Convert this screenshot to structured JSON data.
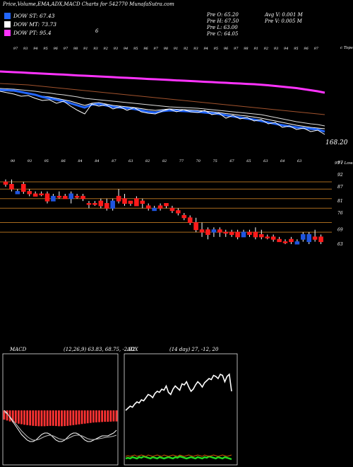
{
  "header": {
    "title": "Price,Volume,EMA,ADX,MACD Charts for 542770  MunafaSutra.com",
    "legend": [
      {
        "label": "DOW ST: 67.43",
        "color": "#2266ff"
      },
      {
        "label": "DOW MT: 73.73",
        "color": "#ffffff"
      },
      {
        "label": "DOW PT: 95.4",
        "color": "#ff33ff"
      }
    ],
    "ohlc": {
      "prev_open": "Pre   O: 65.20",
      "prev_high": "Pre   H: 67.50",
      "prev_low": "Pre   L: 63.00",
      "prev_close": "Pre   C: 64.05",
      "avg_volume": "Avg V: 0.001 M",
      "prev_volume": "Pre   V: 0.005 M"
    },
    "top_right_label": "c Tops",
    "mid_label": "6"
  },
  "colors": {
    "up": "#1f55e0",
    "down": "#ff1a1a",
    "ema_short": "#2266ff",
    "ema_mid": "#ffffff",
    "ema_long": "#ff33ff",
    "ema_brown": "#a0522d",
    "grid": "#a86a1e",
    "macd_hist": "#ff3333",
    "adx_green": "#22dd22",
    "adx_orange": "#cc5500"
  },
  "chart_data": [
    {
      "type": "line",
      "name": "ema-panel",
      "last_value_label": "168.20",
      "top_labels": [
        "97",
        "93",
        "94",
        "95",
        "96",
        "97",
        "98",
        "91",
        "93",
        "92",
        "93",
        "94",
        "95",
        "96",
        "97",
        "98",
        "91",
        "92",
        "93",
        "94",
        "95",
        "96",
        "97",
        "98",
        "91",
        "92",
        "93",
        "94",
        "95",
        "96",
        "97"
      ],
      "x": [
        0,
        10,
        20,
        30,
        40,
        50,
        60,
        70,
        80,
        90,
        100,
        110,
        120,
        130,
        140,
        150,
        160,
        170,
        180,
        190,
        200,
        210,
        220,
        230,
        240,
        250,
        260,
        270,
        280,
        290,
        300,
        310,
        320,
        330,
        340,
        350,
        360,
        370,
        380,
        390,
        400,
        410,
        420,
        430,
        440,
        450,
        460
      ],
      "series": [
        {
          "key": "pink",
          "values": [
            101,
            101.5,
            102,
            102.4,
            103,
            103.5,
            104,
            104.5,
            105,
            105.4,
            106,
            106.6,
            107,
            107.5,
            108,
            108.5,
            109,
            109.6,
            110,
            110.5,
            111,
            111.6,
            112,
            112.5,
            113,
            113.6,
            114,
            114.5,
            115,
            115.6,
            116,
            116.6,
            117,
            117.6,
            118,
            118.6,
            119,
            119.8,
            120.5,
            121.5,
            122.5,
            123.5,
            124.5,
            126,
            127.5,
            129,
            131
          ]
        },
        {
          "key": "brown",
          "values": [
            118,
            118.5,
            119,
            119.5,
            120,
            121,
            122,
            123,
            124,
            125,
            126,
            127,
            128,
            129,
            130,
            131,
            132,
            133,
            134,
            135,
            136,
            137,
            138,
            139,
            140,
            141,
            142,
            143,
            144,
            145,
            146,
            147,
            148,
            149,
            150,
            151,
            152,
            153,
            154,
            155,
            156,
            157,
            158,
            159,
            160,
            161,
            162
          ]
        },
        {
          "key": "white1",
          "values": [
            125,
            125.5,
            126,
            127,
            128,
            129,
            130.5,
            131.5,
            133,
            134,
            135.5,
            137,
            139,
            140,
            141,
            142,
            143,
            144,
            145,
            146,
            147,
            148,
            149,
            150,
            151,
            151.5,
            152,
            152.5,
            153,
            154,
            155,
            156,
            157,
            158,
            159,
            160,
            161,
            162,
            164,
            166,
            168,
            170,
            172,
            173.5,
            175,
            176,
            178
          ]
        },
        {
          "key": "white2",
          "values": [
            128,
            128.5,
            129,
            130.5,
            132,
            134,
            136,
            137,
            139,
            141,
            143,
            146,
            149,
            146,
            145,
            147,
            149,
            150,
            151,
            152,
            153.5,
            155,
            156,
            155,
            154,
            154.5,
            155,
            155.5,
            156,
            157,
            158,
            159,
            160.5,
            161.5,
            163,
            164,
            165.5,
            167,
            169,
            171,
            173,
            175,
            177,
            178.5,
            180,
            181,
            182
          ]
        },
        {
          "key": "blue",
          "values": [
            127,
            127.5,
            128,
            130,
            132,
            134,
            137,
            139,
            141,
            143,
            146,
            149,
            152,
            148,
            147,
            149,
            151,
            152,
            153,
            154,
            156,
            158,
            159,
            157,
            156,
            156.5,
            157,
            157.5,
            158,
            159,
            160,
            161,
            163,
            164.5,
            166,
            167.5,
            169,
            171,
            173,
            175,
            177,
            178.5,
            180,
            181,
            182,
            183,
            186
          ]
        },
        {
          "key": "price",
          "values": [
            129,
            131,
            133,
            136,
            135,
            139,
            142,
            141,
            146,
            143,
            150,
            156,
            161,
            147,
            150,
            148,
            154,
            151,
            156,
            152,
            158,
            160,
            161,
            157,
            154,
            158,
            155,
            158,
            159,
            156,
            162,
            160,
            167,
            163,
            168,
            166,
            171,
            169,
            175,
            173,
            180,
            178,
            183,
            181,
            186,
            184,
            190
          ]
        }
      ]
    },
    {
      "type": "candlestick",
      "name": "price-panel",
      "top_labels": [
        "90",
        "93",
        "95",
        "86",
        "84",
        "84",
        "87",
        "63",
        "82",
        "82",
        "77",
        "70",
        "75",
        "67",
        "65",
        "63",
        "64",
        "63"
      ],
      "y_ticks": [
        97,
        92,
        87,
        81,
        76,
        69,
        63
      ],
      "horizontal_lines": [
        89,
        86,
        82,
        78,
        72,
        68
      ],
      "right_label": "97 c Lows",
      "candles": [
        {
          "o": 89,
          "c": 88,
          "h": 90,
          "l": 87,
          "up": false
        },
        {
          "o": 88,
          "c": 86,
          "h": 90,
          "l": 85,
          "up": false
        },
        {
          "o": 85,
          "c": 84,
          "h": 86,
          "l": 84,
          "up": true
        },
        {
          "o": 85,
          "c": 88,
          "h": 89,
          "l": 84,
          "up": false
        },
        {
          "o": 85,
          "c": 84,
          "h": 86,
          "l": 83,
          "up": false
        },
        {
          "o": 84,
          "c": 83,
          "h": 85,
          "l": 83,
          "up": false
        },
        {
          "o": 84,
          "c": 84,
          "h": 85,
          "l": 83,
          "up": false
        },
        {
          "o": 84,
          "c": 81,
          "h": 85,
          "l": 80,
          "up": false
        },
        {
          "o": 81,
          "c": 83,
          "h": 84,
          "l": 81,
          "up": true
        },
        {
          "o": 83,
          "c": 83,
          "h": 85,
          "l": 82,
          "up": false
        },
        {
          "o": 83,
          "c": 82,
          "h": 84,
          "l": 82,
          "up": false
        },
        {
          "o": 82,
          "c": 84,
          "h": 85,
          "l": 80,
          "up": true
        },
        {
          "o": 83,
          "c": 83,
          "h": 84,
          "l": 82,
          "up": false
        },
        {
          "o": 83,
          "c": 82,
          "h": 84,
          "l": 81,
          "up": false
        },
        {
          "o": 80,
          "c": 80,
          "h": 81,
          "l": 78,
          "up": false
        },
        {
          "o": 80,
          "c": 80,
          "h": 81,
          "l": 79,
          "up": false
        },
        {
          "o": 81,
          "c": 79,
          "h": 82,
          "l": 78,
          "up": false
        },
        {
          "o": 80,
          "c": 78,
          "h": 82,
          "l": 77,
          "up": false
        },
        {
          "o": 78,
          "c": 81,
          "h": 82,
          "l": 77,
          "up": true
        },
        {
          "o": 81,
          "c": 83,
          "h": 86,
          "l": 80,
          "up": false
        },
        {
          "o": 82,
          "c": 80,
          "h": 84,
          "l": 79,
          "up": false
        },
        {
          "o": 80,
          "c": 81,
          "h": 81,
          "l": 79,
          "up": false
        },
        {
          "o": 79,
          "c": 82,
          "h": 83,
          "l": 79,
          "up": false
        },
        {
          "o": 81,
          "c": 80,
          "h": 82,
          "l": 78,
          "up": false
        },
        {
          "o": 79,
          "c": 78,
          "h": 80,
          "l": 77,
          "up": false
        },
        {
          "o": 78,
          "c": 77,
          "h": 79,
          "l": 77,
          "up": true
        },
        {
          "o": 78,
          "c": 79,
          "h": 80,
          "l": 77,
          "up": false
        },
        {
          "o": 79,
          "c": 80,
          "h": 80,
          "l": 78,
          "up": false
        },
        {
          "o": 78,
          "c": 77,
          "h": 79,
          "l": 76,
          "up": false
        },
        {
          "o": 77,
          "c": 76,
          "h": 78,
          "l": 75,
          "up": false
        },
        {
          "o": 75,
          "c": 74,
          "h": 76,
          "l": 73,
          "up": false
        },
        {
          "o": 74,
          "c": 72,
          "h": 75,
          "l": 71,
          "up": false
        },
        {
          "o": 72,
          "c": 69,
          "h": 74,
          "l": 68,
          "up": false
        },
        {
          "o": 69,
          "c": 68,
          "h": 72,
          "l": 66,
          "up": false
        },
        {
          "o": 69,
          "c": 67,
          "h": 70,
          "l": 65,
          "up": false
        },
        {
          "o": 68,
          "c": 69,
          "h": 70,
          "l": 66,
          "up": true
        },
        {
          "o": 69,
          "c": 68,
          "h": 70,
          "l": 66,
          "up": false
        },
        {
          "o": 68,
          "c": 68,
          "h": 69,
          "l": 66,
          "up": false
        },
        {
          "o": 68,
          "c": 67,
          "h": 69,
          "l": 66,
          "up": false
        },
        {
          "o": 68,
          "c": 66,
          "h": 69,
          "l": 65,
          "up": false
        },
        {
          "o": 66,
          "c": 68,
          "h": 69,
          "l": 66,
          "up": true
        },
        {
          "o": 68,
          "c": 67,
          "h": 69,
          "l": 66,
          "up": false
        },
        {
          "o": 68,
          "c": 66,
          "h": 70,
          "l": 65,
          "up": false
        },
        {
          "o": 67,
          "c": 66,
          "h": 69,
          "l": 65,
          "up": false
        },
        {
          "o": 66,
          "c": 66,
          "h": 67,
          "l": 65,
          "up": false
        },
        {
          "o": 66,
          "c": 65,
          "h": 67,
          "l": 64,
          "up": false
        },
        {
          "o": 65,
          "c": 64,
          "h": 66,
          "l": 64,
          "up": false
        },
        {
          "o": 64,
          "c": 64,
          "h": 65,
          "l": 63,
          "up": false
        },
        {
          "o": 65,
          "c": 64,
          "h": 66,
          "l": 63,
          "up": false
        },
        {
          "o": 63,
          "c": 64,
          "h": 65,
          "l": 63,
          "up": true
        },
        {
          "o": 65,
          "c": 67,
          "h": 68,
          "l": 64,
          "up": true
        },
        {
          "o": 64,
          "c": 67,
          "h": 68,
          "l": 63,
          "up": true
        },
        {
          "o": 66,
          "c": 65,
          "h": 69,
          "l": 64,
          "up": false
        },
        {
          "o": 66,
          "c": 64,
          "h": 67,
          "l": 63,
          "up": false
        }
      ]
    },
    {
      "type": "line",
      "name": "macd-panel",
      "label": "MACD",
      "params": "(12,26,9) 63.83, 68.75, -2.92",
      "histogram": [
        -5,
        -5.5,
        -6,
        -6.4,
        -6.8,
        -7.2,
        -7.5,
        -7.8,
        -8,
        -8.2,
        -8.4,
        -8.5,
        -8.6,
        -8.6,
        -8.6,
        -8.5,
        -8.4,
        -8.4,
        -8.5,
        -8.6,
        -8.6,
        -8.5,
        -8.4,
        -8.2,
        -8,
        -7.8,
        -7.6,
        -7.4,
        -7.2,
        -7,
        -6.8,
        -6.6,
        -6.5,
        -6.4,
        -6.3,
        -6.2,
        -6.2,
        -6.1,
        -6,
        -6
      ],
      "series": [
        {
          "key": "macd",
          "values": [
            0,
            -2,
            -5,
            -8,
            -11,
            -14,
            -17,
            -19,
            -21,
            -22,
            -22,
            -21,
            -19,
            -17,
            -16,
            -16,
            -17,
            -19,
            -21,
            -22,
            -22,
            -21,
            -19,
            -17,
            -16,
            -16,
            -17,
            -19,
            -21,
            -22,
            -22,
            -21,
            -20,
            -19,
            -18,
            -18,
            -18,
            -17,
            -16,
            -14
          ]
        },
        {
          "key": "signal",
          "values": [
            -1,
            -2.5,
            -4.5,
            -7,
            -9.5,
            -12,
            -14.5,
            -16.5,
            -18.5,
            -20,
            -21,
            -21,
            -20.5,
            -19.5,
            -18.5,
            -17.8,
            -17.5,
            -18,
            -19,
            -20,
            -20.5,
            -20.6,
            -20,
            -19,
            -18,
            -17.5,
            -17.5,
            -18,
            -19,
            -20,
            -20.5,
            -20.6,
            -20.4,
            -20,
            -19.6,
            -19.2,
            -18.9,
            -18.6,
            -18.2,
            -17.5
          ]
        }
      ]
    },
    {
      "type": "line",
      "name": "adx-panel",
      "label": "ADX",
      "params": "(14 day) 27, -12, 20",
      "series": [
        {
          "key": "adx",
          "values": [
            10,
            12,
            14,
            13,
            16,
            18,
            17,
            20,
            19,
            22,
            25,
            24,
            22,
            26,
            28,
            27,
            30,
            29,
            33,
            27,
            25,
            30,
            33,
            31,
            29,
            35,
            34,
            37,
            32,
            28,
            30,
            34,
            37,
            35,
            32,
            36,
            38,
            40,
            39,
            43,
            42,
            40,
            44,
            43,
            37,
            42,
            44,
            28
          ]
        },
        {
          "key": "plus_di",
          "values": [
            52,
            53,
            52,
            54,
            53,
            52,
            54,
            53,
            55,
            54,
            53,
            52,
            54,
            53,
            52,
            54,
            53,
            52,
            53,
            54,
            53,
            52,
            54,
            53,
            55,
            54,
            53,
            52,
            53,
            54,
            53,
            52,
            54,
            53,
            52,
            54,
            53,
            55,
            54,
            53,
            52,
            54,
            53,
            52,
            54,
            53,
            52,
            51
          ]
        },
        {
          "key": "minus_di",
          "values": [
            45,
            46,
            45,
            46,
            47,
            45,
            46,
            47,
            46,
            45,
            47,
            46,
            45,
            46,
            47,
            46,
            45,
            47,
            46,
            45,
            46,
            47,
            46,
            45,
            47,
            46,
            45,
            46,
            47,
            46,
            45,
            46,
            47,
            46,
            45,
            47,
            46,
            45,
            46,
            47,
            46,
            45,
            46,
            47,
            46,
            45,
            46,
            47
          ]
        }
      ]
    }
  ]
}
